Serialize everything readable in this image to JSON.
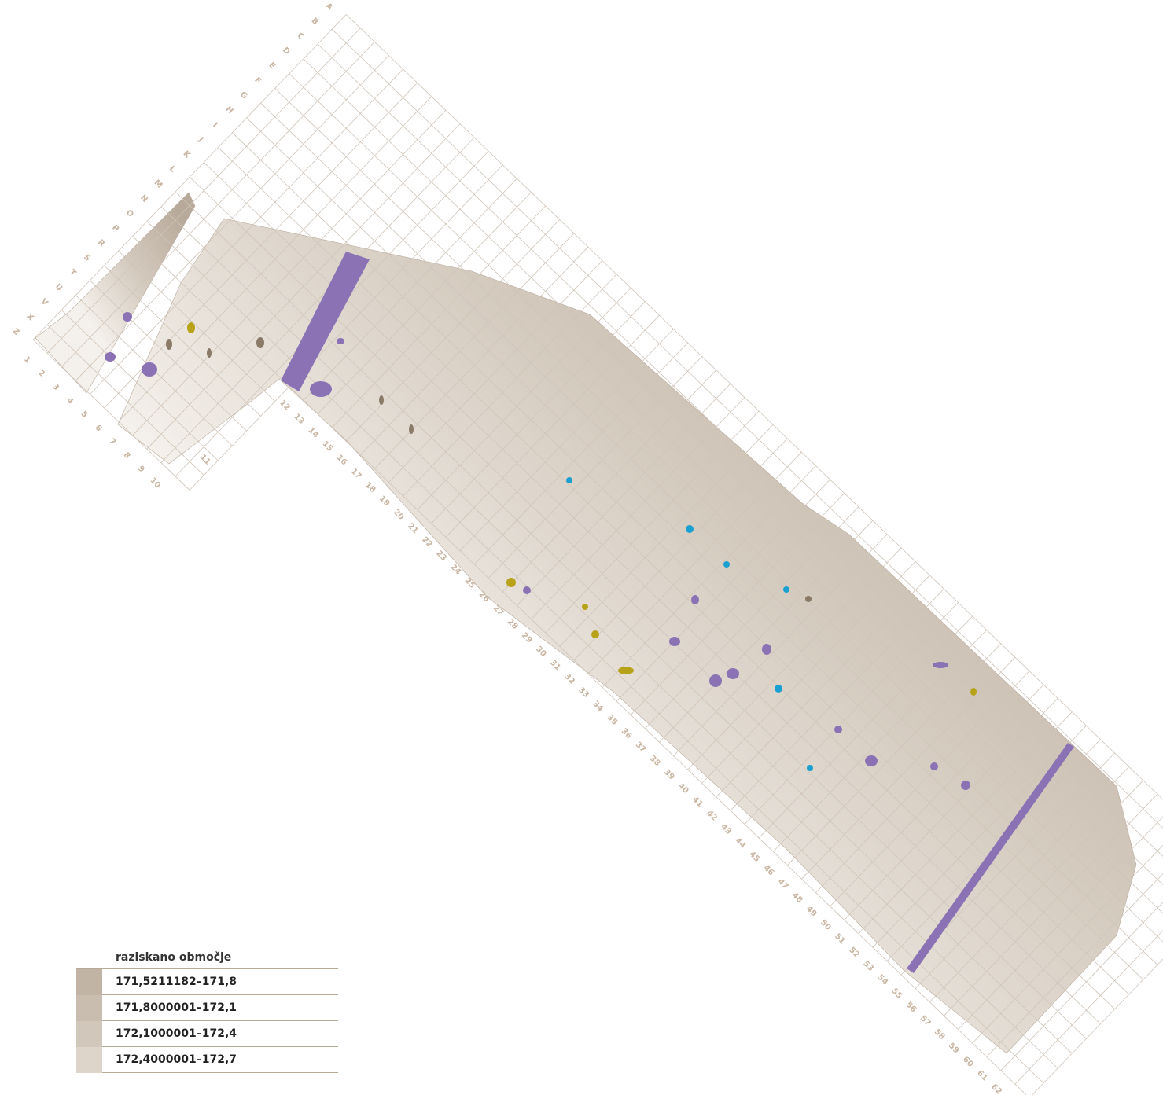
{
  "grid": {
    "letters": [
      "Z",
      "X",
      "V",
      "U",
      "T",
      "S",
      "R",
      "P",
      "O",
      "N",
      "M",
      "L",
      "K",
      "J",
      "I",
      "H",
      "G",
      "F",
      "E",
      "D",
      "C",
      "B",
      "A"
    ],
    "numbers": [
      "1",
      "2",
      "3",
      "4",
      "5",
      "6",
      "7",
      "8",
      "9",
      "10",
      "11",
      "12",
      "13",
      "14",
      "15",
      "16",
      "17",
      "18",
      "19",
      "20",
      "21",
      "22",
      "23",
      "24",
      "25",
      "26",
      "27",
      "28",
      "29",
      "30",
      "31",
      "32",
      "33",
      "34",
      "35",
      "36",
      "37",
      "38",
      "39",
      "40",
      "41",
      "42",
      "43",
      "44",
      "45",
      "46",
      "47",
      "48",
      "49",
      "50",
      "51",
      "52",
      "53",
      "54",
      "55",
      "56",
      "57",
      "58",
      "59",
      "60",
      "61",
      "62"
    ]
  },
  "legend": {
    "title": "raziskano območje",
    "items": [
      "171,5211182–171,8",
      "171,8000001–172,1",
      "172,1000001–172,4",
      "172,4000001–172,7"
    ]
  }
}
